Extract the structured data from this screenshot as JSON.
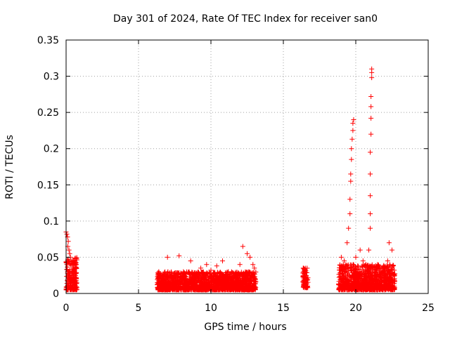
{
  "chart_data": {
    "type": "scatter",
    "title": "Day 301 of 2024, Rate Of TEC Index for receiver san0",
    "xlabel": "GPS time / hours",
    "ylabel": "ROTI / TECUs",
    "xlim": [
      0,
      25
    ],
    "ylim": [
      0,
      0.35
    ],
    "x_ticks": [
      0,
      5,
      10,
      15,
      20,
      25
    ],
    "x_tick_labels": [
      "0",
      "5",
      "10",
      "15",
      "20",
      "25"
    ],
    "y_ticks": [
      0,
      0.05,
      0.1,
      0.15,
      0.2,
      0.25,
      0.3,
      0.35
    ],
    "y_tick_labels": [
      "0",
      "0.05",
      "0.1",
      "0.15",
      "0.2",
      "0.25",
      "0.3",
      "0.35"
    ],
    "grid": true,
    "marker": "plus",
    "color": "#ff0000",
    "series": [
      {
        "points": [
          [
            0.0,
            0.085
          ],
          [
            0.05,
            0.082
          ],
          [
            0.1,
            0.078
          ],
          [
            0.15,
            0.072
          ],
          [
            0.12,
            0.065
          ],
          [
            0.2,
            0.06
          ],
          [
            0.25,
            0.055
          ],
          [
            0.3,
            0.05
          ],
          [
            0.35,
            0.045
          ],
          [
            0.4,
            0.04
          ],
          [
            0.5,
            0.035
          ],
          [
            0.6,
            0.03
          ],
          [
            0.05,
            0.04
          ],
          [
            0.1,
            0.03
          ],
          [
            0.2,
            0.025
          ],
          [
            0.3,
            0.02
          ],
          [
            0.4,
            0.015
          ],
          [
            0.55,
            0.012
          ],
          [
            0.65,
            0.018
          ],
          [
            0.7,
            0.022
          ],
          [
            0.15,
            0.01
          ],
          [
            0.45,
            0.008
          ],
          [
            6.4,
            0.03
          ],
          [
            6.8,
            0.025
          ],
          [
            7.0,
            0.05
          ],
          [
            7.3,
            0.022
          ],
          [
            7.8,
            0.052
          ],
          [
            8.1,
            0.03
          ],
          [
            8.6,
            0.045
          ],
          [
            9.0,
            0.028
          ],
          [
            9.3,
            0.035
          ],
          [
            9.7,
            0.04
          ],
          [
            10.0,
            0.032
          ],
          [
            10.4,
            0.038
          ],
          [
            10.8,
            0.045
          ],
          [
            11.2,
            0.03
          ],
          [
            11.6,
            0.025
          ],
          [
            12.0,
            0.04
          ],
          [
            12.2,
            0.065
          ],
          [
            12.5,
            0.055
          ],
          [
            12.7,
            0.05
          ],
          [
            12.9,
            0.04
          ],
          [
            13.0,
            0.035
          ],
          [
            6.6,
            0.012
          ],
          [
            7.5,
            0.015
          ],
          [
            8.3,
            0.012
          ],
          [
            9.5,
            0.015
          ],
          [
            10.6,
            0.014
          ],
          [
            11.4,
            0.016
          ],
          [
            12.4,
            0.012
          ],
          [
            16.4,
            0.035
          ],
          [
            16.5,
            0.03
          ],
          [
            16.55,
            0.025
          ],
          [
            16.6,
            0.02
          ],
          [
            16.45,
            0.015
          ],
          [
            16.5,
            0.01
          ],
          [
            19.0,
            0.05
          ],
          [
            19.2,
            0.045
          ],
          [
            19.4,
            0.07
          ],
          [
            19.5,
            0.09
          ],
          [
            19.6,
            0.11
          ],
          [
            19.6,
            0.13
          ],
          [
            19.65,
            0.155
          ],
          [
            19.65,
            0.165
          ],
          [
            19.7,
            0.185
          ],
          [
            19.7,
            0.2
          ],
          [
            19.75,
            0.213
          ],
          [
            19.8,
            0.225
          ],
          [
            19.8,
            0.235
          ],
          [
            19.85,
            0.24
          ],
          [
            20.0,
            0.05
          ],
          [
            20.3,
            0.06
          ],
          [
            20.5,
            0.045
          ],
          [
            20.7,
            0.04
          ],
          [
            20.9,
            0.06
          ],
          [
            21.0,
            0.09
          ],
          [
            21.0,
            0.11
          ],
          [
            21.0,
            0.135
          ],
          [
            21.0,
            0.165
          ],
          [
            21.0,
            0.195
          ],
          [
            21.05,
            0.22
          ],
          [
            21.05,
            0.242
          ],
          [
            21.05,
            0.258
          ],
          [
            21.05,
            0.272
          ],
          [
            21.1,
            0.298
          ],
          [
            21.1,
            0.305
          ],
          [
            21.1,
            0.31
          ],
          [
            21.5,
            0.04
          ],
          [
            21.8,
            0.03
          ],
          [
            22.2,
            0.045
          ],
          [
            22.3,
            0.07
          ],
          [
            22.5,
            0.06
          ],
          [
            19.3,
            0.012
          ],
          [
            19.9,
            0.015
          ],
          [
            20.6,
            0.014
          ],
          [
            21.4,
            0.012
          ],
          [
            22.0,
            0.015
          ]
        ]
      }
    ],
    "dense_bands": [
      {
        "x": [
          0.0,
          0.75
        ],
        "y": [
          0.005,
          0.05
        ]
      },
      {
        "x": [
          6.3,
          13.1
        ],
        "y": [
          0.005,
          0.03
        ]
      },
      {
        "x": [
          16.35,
          16.7
        ],
        "y": [
          0.008,
          0.035
        ]
      },
      {
        "x": [
          18.8,
          22.7
        ],
        "y": [
          0.005,
          0.04
        ]
      }
    ]
  }
}
